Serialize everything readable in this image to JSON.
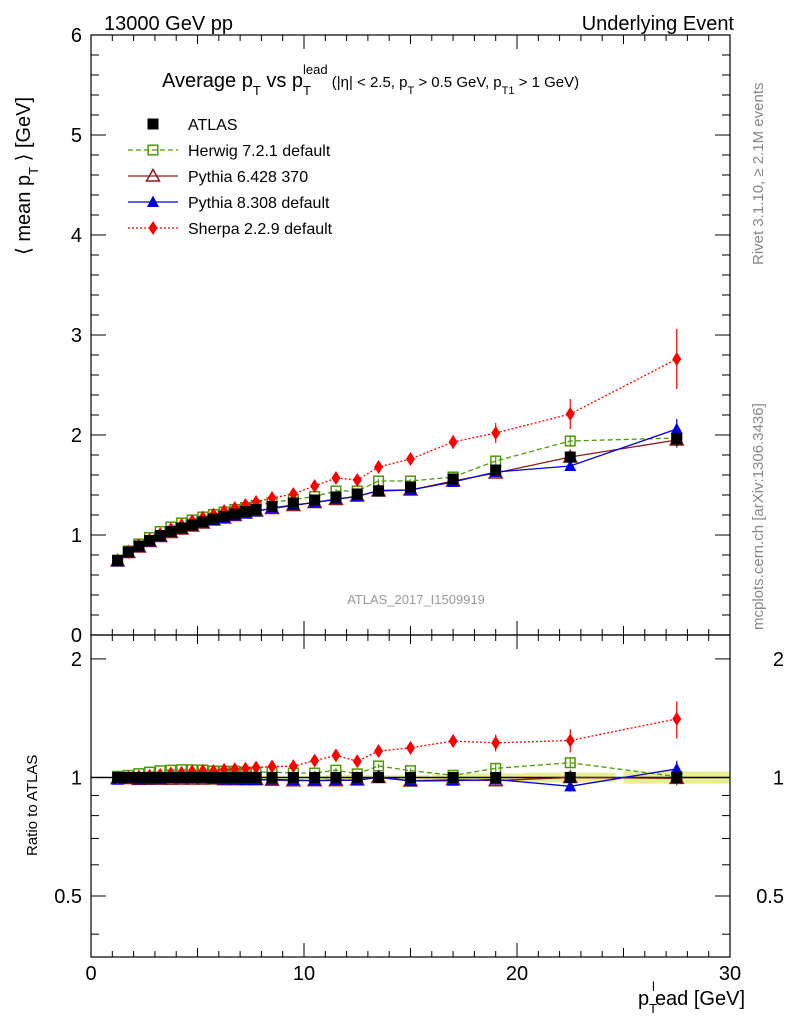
{
  "header": {
    "left": "13000 GeV pp",
    "right": "Underlying Event"
  },
  "title": {
    "main": "Average p",
    "main_sub": "T",
    "vs": " vs p",
    "vs_sub": "T",
    "vs_sup": "lead",
    "cuts_a": " (|η| < 2.5, p",
    "cuts_a_sub": "T",
    "cuts_b": " > 0.5 GeV, p",
    "cuts_b_sub": "T1",
    "cuts_c": " > 1 GeV)"
  },
  "side_labels": {
    "rivet": "Rivet 3.1.10, ≥ 2.1M events",
    "mcplots": "mcplots.cern.ch [arXiv:1306.3436]"
  },
  "watermark": "ATLAS_2017_I1509919",
  "chart_data": {
    "type": "scatter",
    "xlabel": {
      "main": "p",
      "sub": "T",
      "sup": "l",
      "rest": "ead [GeV]"
    },
    "ylabel_top": {
      "open": "⟨ mean p",
      "sub": "T",
      "close": " ⟩ [GeV]"
    },
    "ylabel_bottom": "Ratio to ATLAS",
    "xlim": [
      0,
      30
    ],
    "ylim_top": [
      0,
      6
    ],
    "ylim_bottom": [
      0.35,
      2.3
    ],
    "ratio_log_scale": true,
    "x_ticks": [
      "0",
      "10",
      "20",
      "30"
    ],
    "y_ticks_top": [
      "0",
      "1",
      "2",
      "3",
      "4",
      "5",
      "6"
    ],
    "y_ticks_bottom": [
      "0.5",
      "1",
      "2"
    ],
    "x": [
      1.25,
      1.75,
      2.25,
      2.75,
      3.25,
      3.75,
      4.25,
      4.75,
      5.25,
      5.75,
      6.25,
      6.75,
      7.25,
      7.75,
      8.5,
      9.5,
      10.5,
      11.5,
      12.5,
      13.5,
      15,
      17,
      19,
      22.5,
      27.5
    ],
    "series": [
      {
        "name": "ATLAS",
        "color": "#000000",
        "marker": "square-filled",
        "line": "none",
        "values": [
          0.745,
          0.83,
          0.89,
          0.945,
          0.995,
          1.035,
          1.07,
          1.1,
          1.13,
          1.16,
          1.185,
          1.21,
          1.235,
          1.255,
          1.285,
          1.32,
          1.35,
          1.38,
          1.41,
          1.44,
          1.48,
          1.56,
          1.65,
          1.78,
          1.96
        ],
        "errors": [
          0.01,
          0.01,
          0.01,
          0.01,
          0.01,
          0.01,
          0.01,
          0.01,
          0.01,
          0.01,
          0.01,
          0.01,
          0.01,
          0.01,
          0.01,
          0.01,
          0.01,
          0.02,
          0.02,
          0.02,
          0.02,
          0.03,
          0.04,
          0.05,
          0.07
        ]
      },
      {
        "name": "Herwig 7.2.1 default",
        "color": "#4e9a06",
        "marker": "square-open",
        "line": "dashed",
        "values": [
          0.75,
          0.84,
          0.91,
          0.975,
          1.035,
          1.08,
          1.12,
          1.15,
          1.18,
          1.205,
          1.23,
          1.255,
          1.275,
          1.295,
          1.325,
          1.355,
          1.385,
          1.44,
          1.44,
          1.54,
          1.54,
          1.58,
          1.74,
          1.94,
          1.97
        ],
        "errors": [
          0.01,
          0.01,
          0.01,
          0.01,
          0.01,
          0.01,
          0.01,
          0.01,
          0.01,
          0.01,
          0.01,
          0.01,
          0.01,
          0.01,
          0.01,
          0.01,
          0.02,
          0.02,
          0.02,
          0.02,
          0.02,
          0.03,
          0.05,
          0.06,
          0.1
        ]
      },
      {
        "name": "Pythia 6.428 370",
        "color": "#8b1a1a",
        "marker": "triangle-open",
        "line": "solid",
        "values": [
          0.74,
          0.825,
          0.88,
          0.935,
          0.985,
          1.025,
          1.06,
          1.09,
          1.12,
          1.15,
          1.17,
          1.195,
          1.22,
          1.24,
          1.265,
          1.295,
          1.325,
          1.355,
          1.39,
          1.44,
          1.45,
          1.54,
          1.62,
          1.78,
          1.95
        ],
        "errors": [
          0.01,
          0.01,
          0.01,
          0.01,
          0.01,
          0.01,
          0.01,
          0.01,
          0.01,
          0.01,
          0.01,
          0.01,
          0.01,
          0.01,
          0.01,
          0.01,
          0.02,
          0.02,
          0.02,
          0.02,
          0.02,
          0.03,
          0.04,
          0.05,
          0.07
        ]
      },
      {
        "name": "Pythia 8.308 default",
        "color": "#0000dd",
        "marker": "triangle-filled",
        "line": "solid",
        "values": [
          0.735,
          0.825,
          0.88,
          0.935,
          0.985,
          1.03,
          1.065,
          1.095,
          1.125,
          1.15,
          1.17,
          1.195,
          1.215,
          1.235,
          1.27,
          1.3,
          1.325,
          1.36,
          1.385,
          1.445,
          1.45,
          1.53,
          1.63,
          1.69,
          2.06
        ],
        "errors": [
          0.01,
          0.01,
          0.01,
          0.01,
          0.01,
          0.01,
          0.01,
          0.01,
          0.01,
          0.01,
          0.01,
          0.01,
          0.01,
          0.01,
          0.01,
          0.01,
          0.02,
          0.02,
          0.02,
          0.02,
          0.02,
          0.03,
          0.04,
          0.05,
          0.1
        ]
      },
      {
        "name": "Sherpa 2.2.9 default",
        "color": "#ff0000",
        "marker": "diamond-filled",
        "line": "dotted",
        "values": [
          0.745,
          0.83,
          0.895,
          0.955,
          1.01,
          1.06,
          1.1,
          1.14,
          1.175,
          1.205,
          1.24,
          1.27,
          1.3,
          1.33,
          1.37,
          1.41,
          1.49,
          1.57,
          1.55,
          1.68,
          1.76,
          1.93,
          2.02,
          2.21,
          2.76
        ],
        "errors": [
          0.01,
          0.01,
          0.01,
          0.01,
          0.01,
          0.01,
          0.01,
          0.01,
          0.01,
          0.01,
          0.01,
          0.02,
          0.02,
          0.02,
          0.02,
          0.03,
          0.03,
          0.04,
          0.04,
          0.05,
          0.05,
          0.07,
          0.1,
          0.15,
          0.3
        ]
      }
    ]
  }
}
